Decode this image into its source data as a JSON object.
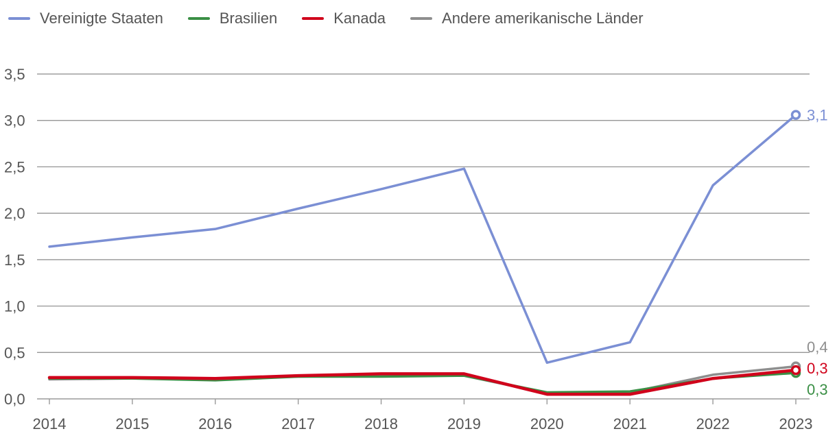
{
  "chart_data": {
    "type": "line",
    "title": "",
    "xlabel": "",
    "ylabel": "",
    "x": [
      "2014",
      "2015",
      "2016",
      "2017",
      "2018",
      "2019",
      "2020",
      "2021",
      "2022",
      "2023"
    ],
    "y_ticks": [
      "0,0",
      "0,5",
      "1,0",
      "1,5",
      "2,0",
      "2,5",
      "3,0",
      "3,5"
    ],
    "ylim": [
      0,
      3.5
    ],
    "grid": true,
    "legend_position": "top-left",
    "series": [
      {
        "name": "Vereinigte Staaten",
        "color": "#7b8fd4",
        "values": [
          1.64,
          1.74,
          1.83,
          2.05,
          2.26,
          2.48,
          0.39,
          0.61,
          2.3,
          3.06
        ],
        "end_label": "3,1"
      },
      {
        "name": "Brasilien",
        "color": "#3a8f45",
        "values": [
          0.22,
          0.22,
          0.2,
          0.24,
          0.24,
          0.25,
          0.07,
          0.08,
          0.22,
          0.28
        ],
        "end_label": "0,3"
      },
      {
        "name": "Kanada",
        "color": "#d0021b",
        "values": [
          0.23,
          0.23,
          0.22,
          0.25,
          0.27,
          0.27,
          0.05,
          0.05,
          0.22,
          0.31
        ],
        "end_label": "0,3"
      },
      {
        "name": "Andere amerikanische Länder",
        "color": "#8e8e8e",
        "values": [
          0.21,
          0.22,
          0.22,
          0.24,
          0.25,
          0.25,
          0.06,
          0.07,
          0.26,
          0.35
        ],
        "end_label": "0,4"
      }
    ]
  }
}
